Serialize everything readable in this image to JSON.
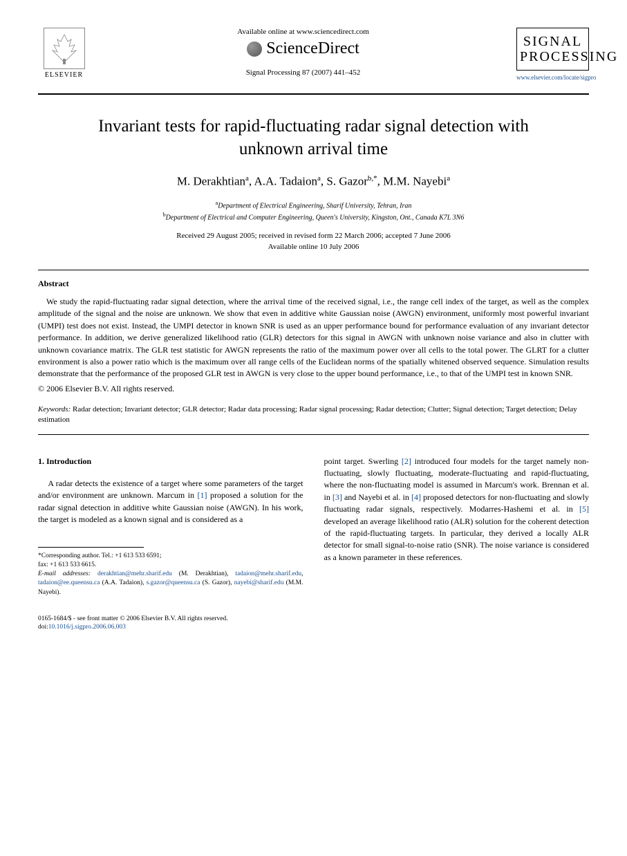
{
  "header": {
    "available_text": "Available online at www.sciencedirect.com",
    "sciencedirect_text": "ScienceDirect",
    "citation": "Signal Processing 87 (2007) 441–452",
    "elsevier_label": "ELSEVIER",
    "journal_name_line1": "SIGNAL",
    "journal_name_line2": "PROCESSING",
    "journal_url": "www.elsevier.com/locate/sigpro"
  },
  "title": "Invariant tests for rapid-fluctuating radar signal detection with unknown arrival time",
  "authors_html": "M. Derakhtian<sup>a</sup>, A.A. Tadaion<sup>a</sup>, S. Gazor<sup>b,*</sup>, M.M. Nayebi<sup>a</sup>",
  "affiliations": {
    "a": "Department of Electrical Engineering, Sharif University, Tehran, Iran",
    "b": "Department of Electrical and Computer Engineering, Queen's University, Kingston, Ont., Canada K7L 3N6"
  },
  "dates": {
    "line1": "Received 29 August 2005; received in revised form 22 March 2006; accepted 7 June 2006",
    "line2": "Available online 10 July 2006"
  },
  "abstract": {
    "heading": "Abstract",
    "text": "We study the rapid-fluctuating radar signal detection, where the arrival time of the received signal, i.e., the range cell index of the target, as well as the complex amplitude of the signal and the noise are unknown. We show that even in additive white Gaussian noise (AWGN) environment, uniformly most powerful invariant (UMPI) test does not exist. Instead, the UMPI detector in known SNR is used as an upper performance bound for performance evaluation of any invariant detector performance. In addition, we derive generalized likelihood ratio (GLR) detectors for this signal in AWGN with unknown noise variance and also in clutter with unknown covariance matrix. The GLR test statistic for AWGN represents the ratio of the maximum power over all cells to the total power. The GLRT for a clutter environment is also a power ratio which is the maximum over all range cells of the Euclidean norms of the spatially whitened observed sequence. Simulation results demonstrate that the performance of the proposed GLR test in AWGN is very close to the upper bound performance, i.e., to that of the UMPI test in known SNR.",
    "copyright": "© 2006 Elsevier B.V. All rights reserved."
  },
  "keywords": {
    "label": "Keywords:",
    "text": "Radar detection; Invariant detector; GLR detector; Radar data processing; Radar signal processing; Radar detection; Clutter; Signal detection; Target detection; Delay estimation"
  },
  "section1": {
    "heading": "1. Introduction",
    "col1_text": "A radar detects the existence of a target where some parameters of the target and/or environment are unknown. Marcum in [1] proposed a solution for the radar signal detection in additive white Gaussian noise (AWGN). In his work, the target is modeled as a known signal and is considered as a",
    "col2_text": "point target. Swerling [2] introduced four models for the target namely non-fluctuating, slowly fluctuating, moderate-fluctuating and rapid-fluctuating, where the non-fluctuating model is assumed in Marcum's work. Brennan et al. in [3] and Nayebi et al. in [4] proposed detectors for non-fluctuating and slowly fluctuating radar signals, respectively. Modarres-Hashemi et al. in [5] developed an average likelihood ratio (ALR) solution for the coherent detection of the rapid-fluctuating targets. In particular, they derived a locally ALR detector for small signal-to-noise ratio (SNR). The noise variance is considered as a known parameter in these references."
  },
  "corresponding": {
    "asterisk": "*Corresponding author. Tel.: +1 613 533 6591;",
    "fax": "fax: +1 613 533 6615.",
    "email_label": "E-mail addresses:",
    "emails": [
      {
        "addr": "derakhtian@mehr.sharif.edu",
        "name": "(M. Derakhtian)"
      },
      {
        "addr": "tadaion@mehr.sharif.edu",
        "name": ""
      },
      {
        "addr": "tadaion@ee.queensu.ca",
        "name": "(A.A. Tadaion)"
      },
      {
        "addr": "s.gazor@queensu.ca",
        "name": "(S. Gazor)"
      },
      {
        "addr": "nayebi@sharif.edu",
        "name": "(M.M. Nayebi)"
      }
    ]
  },
  "footer": {
    "issn": "0165-1684/$ - see front matter © 2006 Elsevier B.V. All rights reserved.",
    "doi_label": "doi:",
    "doi": "10.1016/j.sigpro.2006.06.003"
  },
  "refs": {
    "r1": "[1]",
    "r2": "[2]",
    "r3": "[3]",
    "r4": "[4]",
    "r5": "[5]"
  }
}
